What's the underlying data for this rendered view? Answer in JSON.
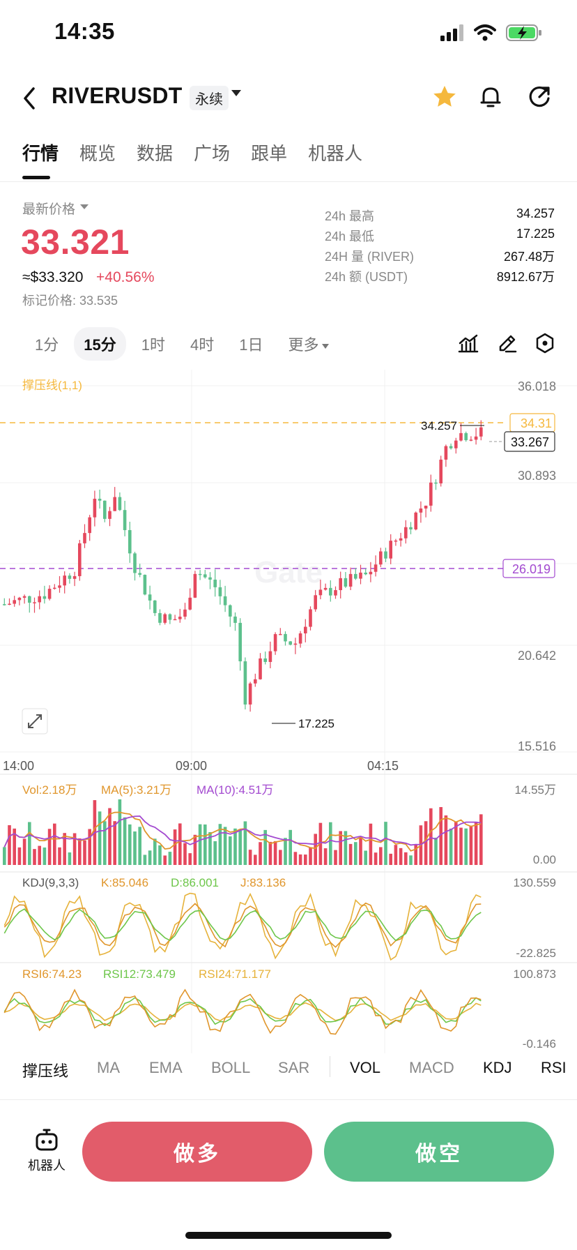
{
  "status_bar": {
    "time": "14:35"
  },
  "header": {
    "symbol": "RIVERUSDT",
    "contract_type": "永续"
  },
  "tabs": [
    "行情",
    "概览",
    "数据",
    "广场",
    "跟单",
    "机器人"
  ],
  "price": {
    "label": "最新价格",
    "last": "33.321",
    "usd": "≈$33.320",
    "change": "+40.56%",
    "mark": "标记价格: 33.535"
  },
  "stats": [
    {
      "label": "24h  最高",
      "value": "34.257"
    },
    {
      "label": "24h  最低",
      "value": "17.225"
    },
    {
      "label": "24H  量 (RIVER)",
      "value": "267.48万"
    },
    {
      "label": "24h  额 (USDT)",
      "value": "8912.67万"
    }
  ],
  "intervals": [
    "1分",
    "15分",
    "1时",
    "4时",
    "1日",
    "更多"
  ],
  "chart": {
    "overlay_label": "撑压线(1,1)",
    "price_axis": [
      "36.018",
      "30.893",
      "20.642",
      "15.516"
    ],
    "resistance": "34.31",
    "current": "33.267",
    "support": "26.019",
    "high_marker": "34.257",
    "low_marker": "17.225",
    "time_axis": [
      "14:00",
      "09:00",
      "04:15"
    ],
    "vol_label": "Vol:2.18万",
    "vol_ma5": "MA(5):3.21万",
    "vol_ma10": "MA(10):4.51万",
    "vol_axis": [
      "14.55万",
      "0.00"
    ],
    "kdj_label": "KDJ(9,3,3)",
    "kdj_k": "K:85.046",
    "kdj_d": "D:86.001",
    "kdj_j": "J:83.136",
    "kdj_axis": [
      "130.559",
      "-22.825"
    ],
    "rsi6": "RSI6:74.23",
    "rsi12": "RSI12:73.479",
    "rsi24": "RSI24:71.177",
    "rsi_axis": [
      "100.873",
      "-0.146"
    ],
    "watermark": "Gate"
  },
  "indicator_tabs": [
    "撑压线",
    "MA",
    "EMA",
    "BOLL",
    "SAR",
    "VOL",
    "MACD",
    "KDJ",
    "RSI"
  ],
  "bottom": {
    "robot": "机器人",
    "long": "做多",
    "short": "做空"
  },
  "colors": {
    "up": "#e5485d",
    "down": "#5cc08c",
    "resistance": "#f5b83d",
    "support": "#a34ad0"
  }
}
